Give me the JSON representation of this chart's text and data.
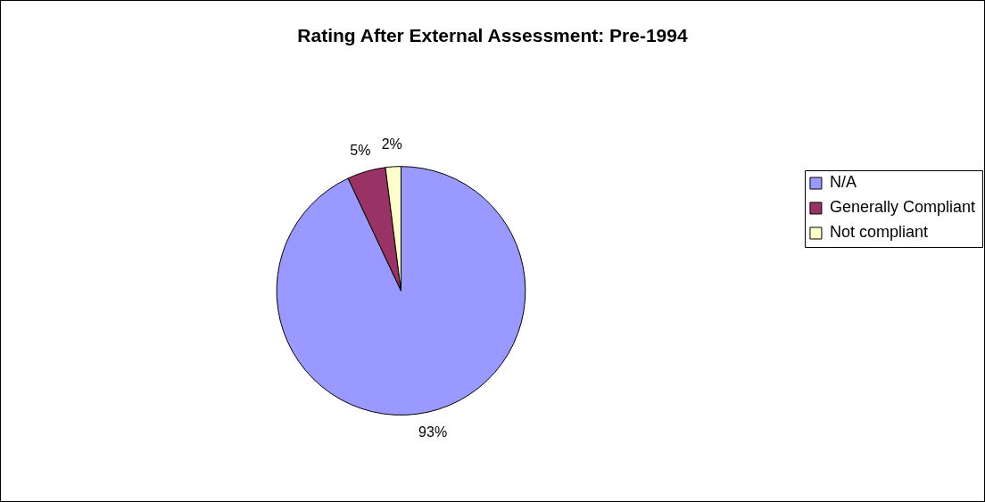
{
  "chart_data": {
    "type": "pie",
    "title": "Rating After External Assessment: Pre-1994",
    "categories": [
      "N/A",
      "Generally Compliant",
      "Not compliant"
    ],
    "values": [
      93,
      5,
      2
    ],
    "value_labels": [
      "93%",
      "5%",
      "2%"
    ],
    "colors": [
      "#9999ff",
      "#993366",
      "#ffffcc"
    ],
    "legend": "right"
  }
}
